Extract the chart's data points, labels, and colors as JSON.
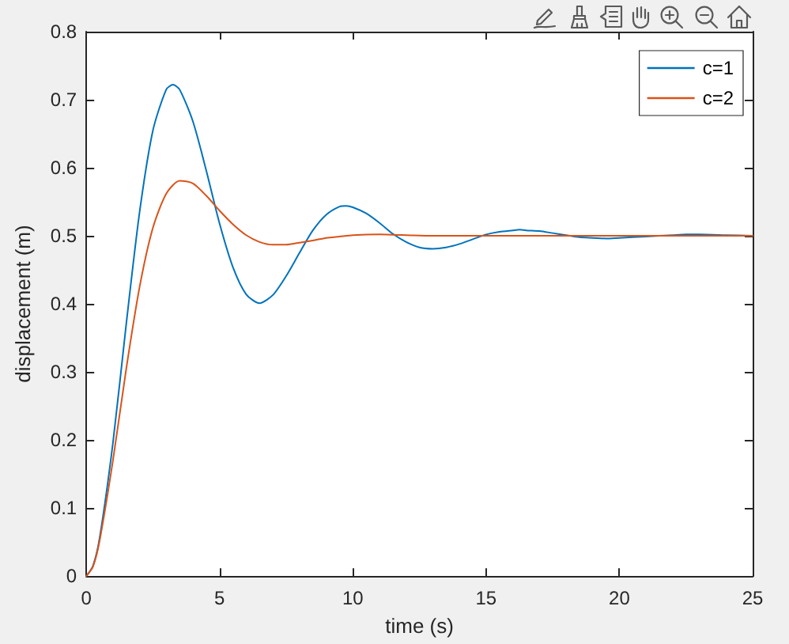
{
  "chart_data": {
    "type": "line",
    "xlabel": "time (s)",
    "ylabel": "displacement (m)",
    "xlim": [
      0,
      25
    ],
    "xticks": [
      0,
      5,
      10,
      15,
      20,
      25
    ],
    "ylim": [
      0,
      0.8
    ],
    "yticks": [
      0,
      0.1,
      0.2,
      0.3,
      0.4,
      0.5,
      0.6,
      0.7,
      0.8
    ],
    "grid": false,
    "legend": "top right",
    "series": [
      {
        "name": "c=1",
        "color": "#0072bd",
        "x": [
          0,
          0.25,
          0.5,
          1,
          1.5,
          2,
          2.5,
          3,
          3.25,
          3.5,
          4,
          4.5,
          5,
          5.5,
          6,
          6.5,
          7,
          7.5,
          8,
          8.5,
          9,
          9.5,
          9.75,
          10,
          10.5,
          11,
          11.5,
          12,
          12.5,
          13,
          13.5,
          14,
          14.5,
          15,
          15.5,
          16,
          16.25,
          16.5,
          17,
          17.5,
          18,
          18.5,
          19,
          19.5,
          20,
          21,
          22,
          22.5,
          23,
          24,
          25
        ],
        "values": [
          0,
          0.015,
          0.056,
          0.196,
          0.371,
          0.535,
          0.655,
          0.715,
          0.722,
          0.715,
          0.668,
          0.596,
          0.518,
          0.454,
          0.414,
          0.401,
          0.413,
          0.441,
          0.475,
          0.508,
          0.531,
          0.543,
          0.544,
          0.542,
          0.533,
          0.519,
          0.503,
          0.491,
          0.483,
          0.481,
          0.483,
          0.488,
          0.495,
          0.502,
          0.506,
          0.508,
          0.509,
          0.508,
          0.507,
          0.504,
          0.501,
          0.498,
          0.497,
          0.496,
          0.497,
          0.499,
          0.501,
          0.502,
          0.502,
          0.501,
          0.5
        ]
      },
      {
        "name": "c=2",
        "color": "#d95319",
        "x": [
          0,
          0.25,
          0.5,
          1,
          1.5,
          2,
          2.5,
          3,
          3.5,
          4,
          4.5,
          5,
          5.5,
          6,
          6.5,
          7,
          7.5,
          8,
          8.5,
          9,
          9.5,
          10,
          11,
          12,
          13,
          14,
          15,
          17,
          19,
          21,
          23,
          25
        ],
        "values": [
          0,
          0.014,
          0.052,
          0.17,
          0.305,
          0.425,
          0.512,
          0.562,
          0.581,
          0.577,
          0.559,
          0.537,
          0.517,
          0.501,
          0.491,
          0.487,
          0.487,
          0.49,
          0.493,
          0.497,
          0.499,
          0.501,
          0.502,
          0.501,
          0.5,
          0.5,
          0.5,
          0.5,
          0.5,
          0.5,
          0.5,
          0.5
        ]
      }
    ]
  }
}
